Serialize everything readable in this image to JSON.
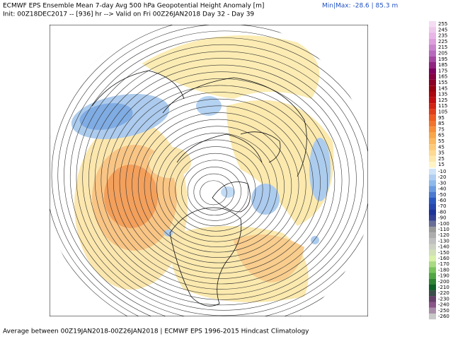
{
  "header": {
    "line1": "ECMWF EPS Ensemble Mean 7-day Avg 500 hPa Geopotential Height Anomaly [m]",
    "line2": "Init: 00Z18DEC2017 -- [936] hr --> Valid on Fri 00Z26JAN2018  Day 32 - Day 39",
    "minmax": "Min|Max: -28.6 | 85.3 m"
  },
  "colorbar": {
    "labels": [
      255,
      245,
      235,
      225,
      215,
      205,
      195,
      185,
      175,
      165,
      155,
      145,
      135,
      125,
      115,
      105,
      95,
      85,
      75,
      65,
      55,
      45,
      35,
      25,
      15,
      -10,
      -20,
      -30,
      -40,
      -50,
      -60,
      -70,
      -80,
      -90,
      -100,
      -110,
      -120,
      -130,
      -140,
      -150,
      -160,
      -170,
      -180,
      -190,
      -200,
      -210,
      -220,
      -230,
      -240,
      -250,
      -260
    ]
  },
  "footer": "Average between 00Z19JAN2018-00Z26JAN2018 | ECMWF EPS 1996-2015 Hindcast Climatology"
}
